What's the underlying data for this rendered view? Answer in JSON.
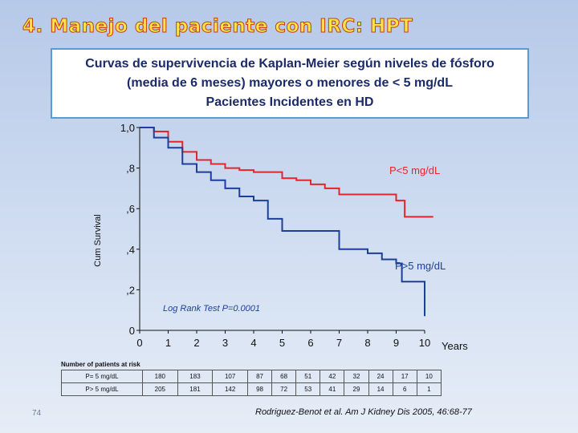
{
  "slide": {
    "title": "4. Manejo del paciente con IRC: HPT",
    "header_lines": [
      "Curvas de supervivencia de Kaplan-Meier según niveles de fósforo",
      "(media de 6 meses) mayores o menores de < 5 mg/dL",
      "Pacientes Incidentes en HD"
    ],
    "page_number": "74",
    "citation": "Rodriguez-Benot et al. Am J Kidney Dis 2005, 46:68-77"
  },
  "chart_data": {
    "type": "line",
    "step": true,
    "title": "",
    "xlabel": "Years",
    "ylabel": "Cum Survival",
    "x_ticks": [
      "0",
      "1",
      "2",
      "3",
      "4",
      "5",
      "6",
      "7",
      "8",
      "9",
      "10"
    ],
    "y_ticks": [
      "0",
      ",2",
      ",4",
      ",6",
      ",8",
      "1,0"
    ],
    "xlim": [
      0,
      10
    ],
    "ylim": [
      0,
      1
    ],
    "annotation": "Log Rank Test P=0.0001",
    "series": [
      {
        "name": "P<5 mg/dL",
        "color": "#e3262b",
        "points": [
          [
            0,
            1.0
          ],
          [
            0.5,
            0.98
          ],
          [
            1.0,
            0.93
          ],
          [
            1.5,
            0.88
          ],
          [
            2.0,
            0.84
          ],
          [
            2.5,
            0.82
          ],
          [
            3.0,
            0.8
          ],
          [
            3.5,
            0.79
          ],
          [
            4.0,
            0.78
          ],
          [
            5.0,
            0.75
          ],
          [
            5.5,
            0.74
          ],
          [
            6.0,
            0.72
          ],
          [
            6.5,
            0.7
          ],
          [
            7.0,
            0.67
          ],
          [
            8.0,
            0.67
          ],
          [
            9.0,
            0.64
          ],
          [
            9.3,
            0.56
          ],
          [
            10.3,
            0.56
          ]
        ]
      },
      {
        "name": "P>5 mg/dL",
        "color": "#1c3f9a",
        "points": [
          [
            0,
            1.0
          ],
          [
            0.5,
            0.95
          ],
          [
            1.0,
            0.9
          ],
          [
            1.5,
            0.82
          ],
          [
            2.0,
            0.78
          ],
          [
            2.5,
            0.74
          ],
          [
            3.0,
            0.7
          ],
          [
            3.5,
            0.66
          ],
          [
            4.0,
            0.64
          ],
          [
            4.5,
            0.55
          ],
          [
            5.0,
            0.49
          ],
          [
            6.0,
            0.49
          ],
          [
            7.0,
            0.4
          ],
          [
            8.0,
            0.38
          ],
          [
            8.5,
            0.35
          ],
          [
            9.0,
            0.33
          ],
          [
            9.2,
            0.24
          ],
          [
            10.0,
            0.24
          ],
          [
            10.0,
            0.14
          ],
          [
            10.0,
            0.07
          ]
        ]
      }
    ]
  },
  "risk_table": {
    "title": "Number of patients at risk",
    "rows": [
      {
        "label": "P= 5 mg/dL",
        "values": [
          "180",
          "183",
          "107",
          "87",
          "68",
          "51",
          "42",
          "32",
          "24",
          "17",
          "10"
        ]
      },
      {
        "label": "P> 5 mg/dL",
        "values": [
          "205",
          "181",
          "142",
          "98",
          "72",
          "53",
          "41",
          "29",
          "14",
          "6",
          "1"
        ]
      }
    ]
  }
}
